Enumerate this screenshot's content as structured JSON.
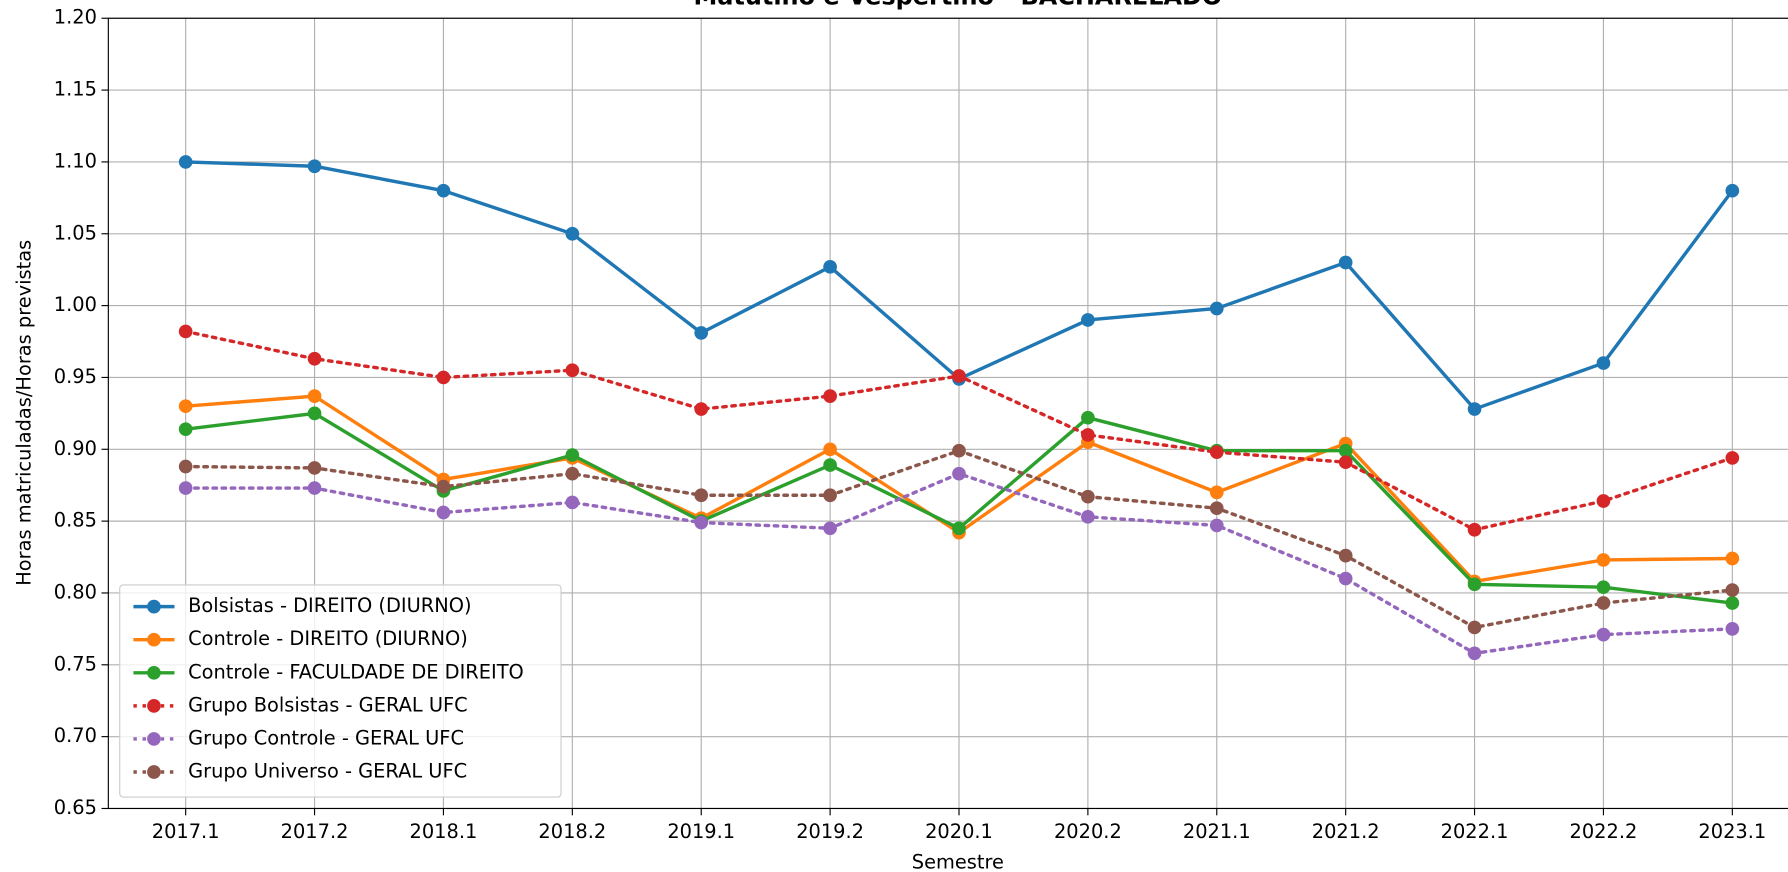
{
  "chart_data": {
    "type": "line",
    "title": "Matutino e Vespertino  - BACHARELADO",
    "x_label": "Semestre",
    "y_label": "Horas matriculadas/Horas previstas",
    "categories": [
      "2017.1",
      "2017.2",
      "2018.1",
      "2018.2",
      "2019.1",
      "2019.2",
      "2020.1",
      "2020.2",
      "2021.1",
      "2021.2",
      "2022.1",
      "2022.2",
      "2023.1"
    ],
    "ylim": [
      0.65,
      1.2
    ],
    "yticks": [
      {
        "value": 0.65,
        "label": "0.65"
      },
      {
        "value": 0.7,
        "label": "0.70"
      },
      {
        "value": 0.75,
        "label": "0.75"
      },
      {
        "value": 0.8,
        "label": "0.80"
      },
      {
        "value": 0.85,
        "label": "0.85"
      },
      {
        "value": 0.9,
        "label": "0.90"
      },
      {
        "value": 0.95,
        "label": "0.95"
      },
      {
        "value": 1.0,
        "label": "1.00"
      },
      {
        "value": 1.05,
        "label": "1.05"
      },
      {
        "value": 1.1,
        "label": "1.10"
      },
      {
        "value": 1.15,
        "label": "1.15"
      },
      {
        "value": 1.2,
        "label": "1.20"
      }
    ],
    "grid": true,
    "legend": "lower left",
    "series": [
      {
        "name": "Bolsistas - DIREITO (DIURNO)",
        "color": "#1f77b4",
        "linestyle": "solid",
        "values": [
          1.1,
          1.097,
          1.08,
          1.05,
          0.981,
          1.027,
          0.949,
          0.99,
          0.998,
          1.03,
          0.928,
          0.96,
          1.08
        ]
      },
      {
        "name": "Controle - DIREITO (DIURNO)",
        "color": "#ff7f0e",
        "linestyle": "solid",
        "values": [
          0.93,
          0.937,
          0.879,
          0.894,
          0.852,
          0.9,
          0.842,
          0.905,
          0.87,
          0.904,
          0.808,
          0.823,
          0.824
        ]
      },
      {
        "name": "Controle - FACULDADE DE DIREITO",
        "color": "#2ca02c",
        "linestyle": "solid",
        "values": [
          0.914,
          0.925,
          0.871,
          0.896,
          0.85,
          0.889,
          0.845,
          0.922,
          0.899,
          0.899,
          0.806,
          0.804,
          0.793
        ]
      },
      {
        "name": "Grupo Bolsistas - GERAL UFC",
        "color": "#d62728",
        "linestyle": "dotted",
        "values": [
          0.982,
          0.963,
          0.95,
          0.955,
          0.928,
          0.937,
          0.951,
          0.91,
          0.898,
          0.891,
          0.844,
          0.864,
          0.894
        ]
      },
      {
        "name": "Grupo Controle - GERAL UFC",
        "color": "#9467bd",
        "linestyle": "dotted",
        "values": [
          0.873,
          0.873,
          0.856,
          0.863,
          0.849,
          0.845,
          0.883,
          0.853,
          0.847,
          0.81,
          0.758,
          0.771,
          0.775
        ]
      },
      {
        "name": "Grupo Universo - GERAL UFC",
        "color": "#8c564b",
        "linestyle": "dotted",
        "values": [
          0.888,
          0.887,
          0.874,
          0.883,
          0.868,
          0.868,
          0.899,
          0.867,
          0.859,
          0.826,
          0.776,
          0.793,
          0.802
        ]
      }
    ]
  }
}
